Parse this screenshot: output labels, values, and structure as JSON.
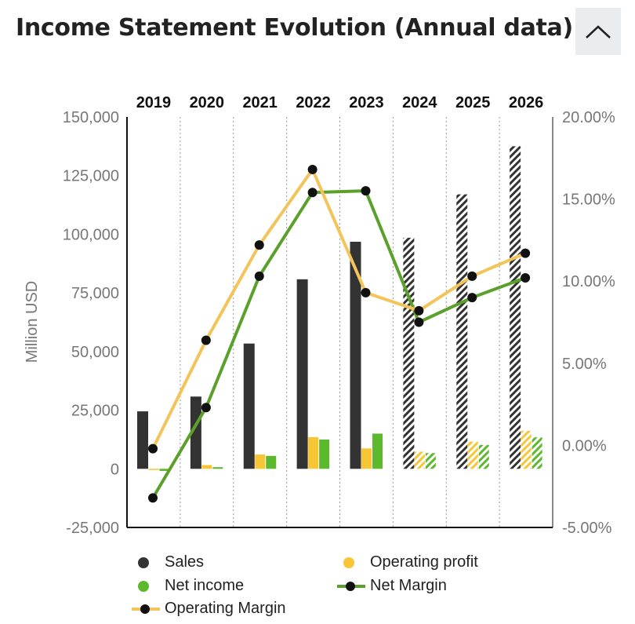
{
  "header": {
    "title": "Income Statement Evolution (Annual data)",
    "collapse_icon": "chevron-up-icon"
  },
  "colors": {
    "sales": "#333333",
    "operating_profit": "#f8c634",
    "net_income": "#5cb82c",
    "net_margin": "#5ca02c",
    "operating_margin": "#f2c45a",
    "marker": "#111111"
  },
  "chart_data": {
    "type": "bar",
    "categories": [
      "2019",
      "2020",
      "2021",
      "2022",
      "2023",
      "2024",
      "2025",
      "2026"
    ],
    "estimate_from": "2024",
    "y_left": {
      "label": "Million USD",
      "ylim": [
        -25000,
        150000
      ],
      "ticks": [
        "-25,000",
        "0",
        "25,000",
        "50,000",
        "75,000",
        "100,000",
        "125,000",
        "150,000"
      ]
    },
    "y_right": {
      "ylim": [
        -5,
        20
      ],
      "ticks": [
        "-5.00%",
        "0.00%",
        "5.00%",
        "10.00%",
        "15.00%",
        "20.00%"
      ]
    },
    "series": [
      {
        "name": "Sales",
        "kind": "bar",
        "values": [
          24500,
          30800,
          53400,
          80800,
          96800,
          98500,
          117000,
          137500
        ]
      },
      {
        "name": "Operating profit",
        "kind": "bar",
        "values": [
          -200,
          1600,
          6100,
          13500,
          8700,
          7300,
          11600,
          16200
        ]
      },
      {
        "name": "Net income",
        "kind": "bar",
        "values": [
          -900,
          700,
          5500,
          12500,
          15000,
          6700,
          10200,
          13400
        ]
      },
      {
        "name": "Net Margin",
        "kind": "line",
        "values": [
          -3.2,
          2.3,
          10.3,
          15.4,
          15.5,
          7.5,
          9.0,
          10.2
        ]
      },
      {
        "name": "Operating Margin",
        "kind": "line",
        "values": [
          -0.2,
          6.4,
          12.2,
          16.8,
          9.3,
          8.2,
          10.3,
          11.7
        ]
      }
    ],
    "grid": "vertical dotted",
    "legend_position": "bottom"
  }
}
